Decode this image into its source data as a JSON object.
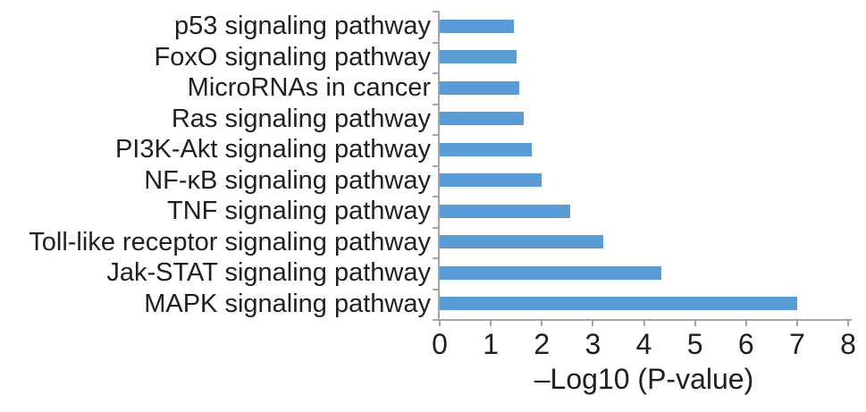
{
  "chart_data": {
    "type": "bar",
    "orientation": "horizontal",
    "title": "",
    "xlabel": "–Log10 (P-value)",
    "ylabel": "",
    "categories": [
      "p53 signaling pathway",
      "FoxO signaling pathway",
      "MicroRNAs in cancer",
      "Ras signaling pathway",
      "PI3K-Akt signaling pathway",
      "NF-κB signaling pathway",
      "TNF signaling pathway",
      "Toll-like receptor signaling pathway",
      "Jak-STAT signaling pathway",
      "MAPK signaling pathway"
    ],
    "values": [
      1.45,
      1.5,
      1.55,
      1.65,
      1.8,
      2.0,
      2.55,
      3.2,
      4.35,
      7.0
    ],
    "xlim": [
      0,
      8
    ],
    "xticks": [
      0,
      1,
      2,
      3,
      4,
      5,
      6,
      7,
      8
    ],
    "grid": false,
    "legend_position": "none",
    "colors": {
      "bar": "#5b9bd5",
      "axis": "#a6a6a6",
      "text": "#1f1f1f",
      "background": "#ffffff"
    }
  }
}
